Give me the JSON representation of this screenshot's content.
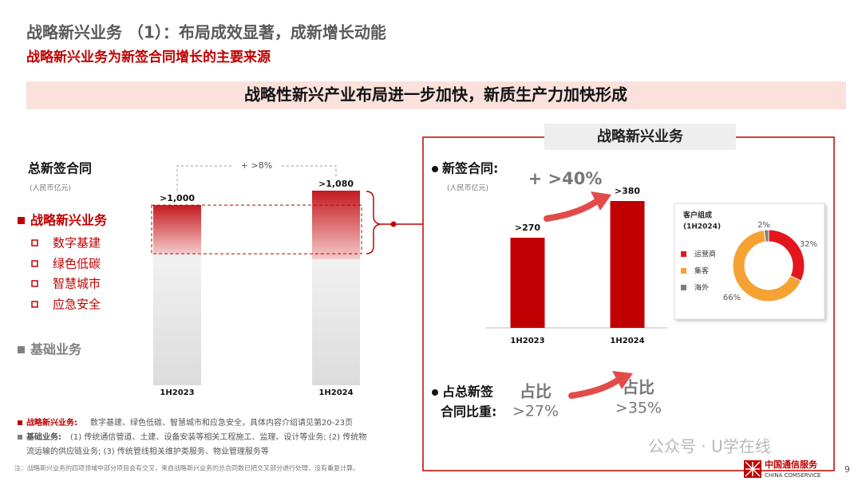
{
  "header": {
    "title": "战略新兴业务 （1）：布局成效显著，成新增长动能",
    "subtitle": "战略新兴业务为新签合同增长的主要来源"
  },
  "banner": "战略性新兴产业布局进一步加快，新质生产力加快形成",
  "left_panel": {
    "title": "总新签合同",
    "unit": "(人民币亿元)",
    "sub_items": [
      "数字基建",
      "绿色低碳",
      "智慧城市",
      "应急安全"
    ]
  },
  "right_panel": {
    "tab": "战略新兴业务",
    "contracts_label": "新签合同:",
    "unit": "(人民币亿元)",
    "share_label": [
      "占总新签",
      "合同比重:"
    ],
    "shares": [
      {
        "title": "占比",
        "label": ">27%"
      },
      {
        "title": "占比",
        "label": ">35%"
      }
    ]
  },
  "footnotes": [
    {
      "term": "战略新兴业务:",
      "text": "数字基建、绿色低碳、智慧城市和应急安全，具体内容介绍请见第20-23页"
    },
    {
      "term": "基础业务:",
      "text": "(1) 传统通信管道、土建、设备安装等相关工程施工、监理、设计等业务; (2) 传统物",
      "text2": "流运输的供应链业务; (3) 传统管线相关维护类服务、物业管理服务等"
    }
  ],
  "note": "注：战略新兴业务的四项领域中部分项目会有交叉，来自战略新兴业务的总合同数已把交叉部分进行处理，没有重复计算。",
  "watermark": "公众号 · U学在线",
  "logo": {
    "cn": "中国通信服务",
    "en": "CHINA COMSERVICE"
  },
  "page_number": "9",
  "chart_data": [
    {
      "type": "stacked_bar",
      "categories": [
        "1H2023",
        "1H2024"
      ],
      "series": [
        {
          "name": "基础业务",
          "color": "#bdbdbd",
          "values": [
            730,
            700
          ]
        },
        {
          "name": "战略新兴业务",
          "color": "#d42a2a",
          "values": [
            270,
            380
          ]
        }
      ],
      "totals": [
        1000,
        1080
      ],
      "total_labels": [
        ">1,000",
        ">1,080"
      ],
      "annotation": "+ >8%"
    },
    {
      "type": "bar",
      "categories": [
        "1H2023",
        "1H2024"
      ],
      "values": [
        270,
        380
      ],
      "value_labels": [
        ">270",
        ">380"
      ],
      "color": "#c00000",
      "annotation": "+ >40%"
    },
    {
      "type": "pie",
      "title": [
        "客户组成",
        "(1H2024)"
      ],
      "categories": [
        "运营商",
        "集客",
        "海外"
      ],
      "values": [
        32,
        66,
        2
      ],
      "value_labels": [
        "32%",
        "66%",
        "2%"
      ],
      "colors": [
        "#e3161e",
        "#f5a233",
        "#7f7f7f"
      ]
    }
  ]
}
